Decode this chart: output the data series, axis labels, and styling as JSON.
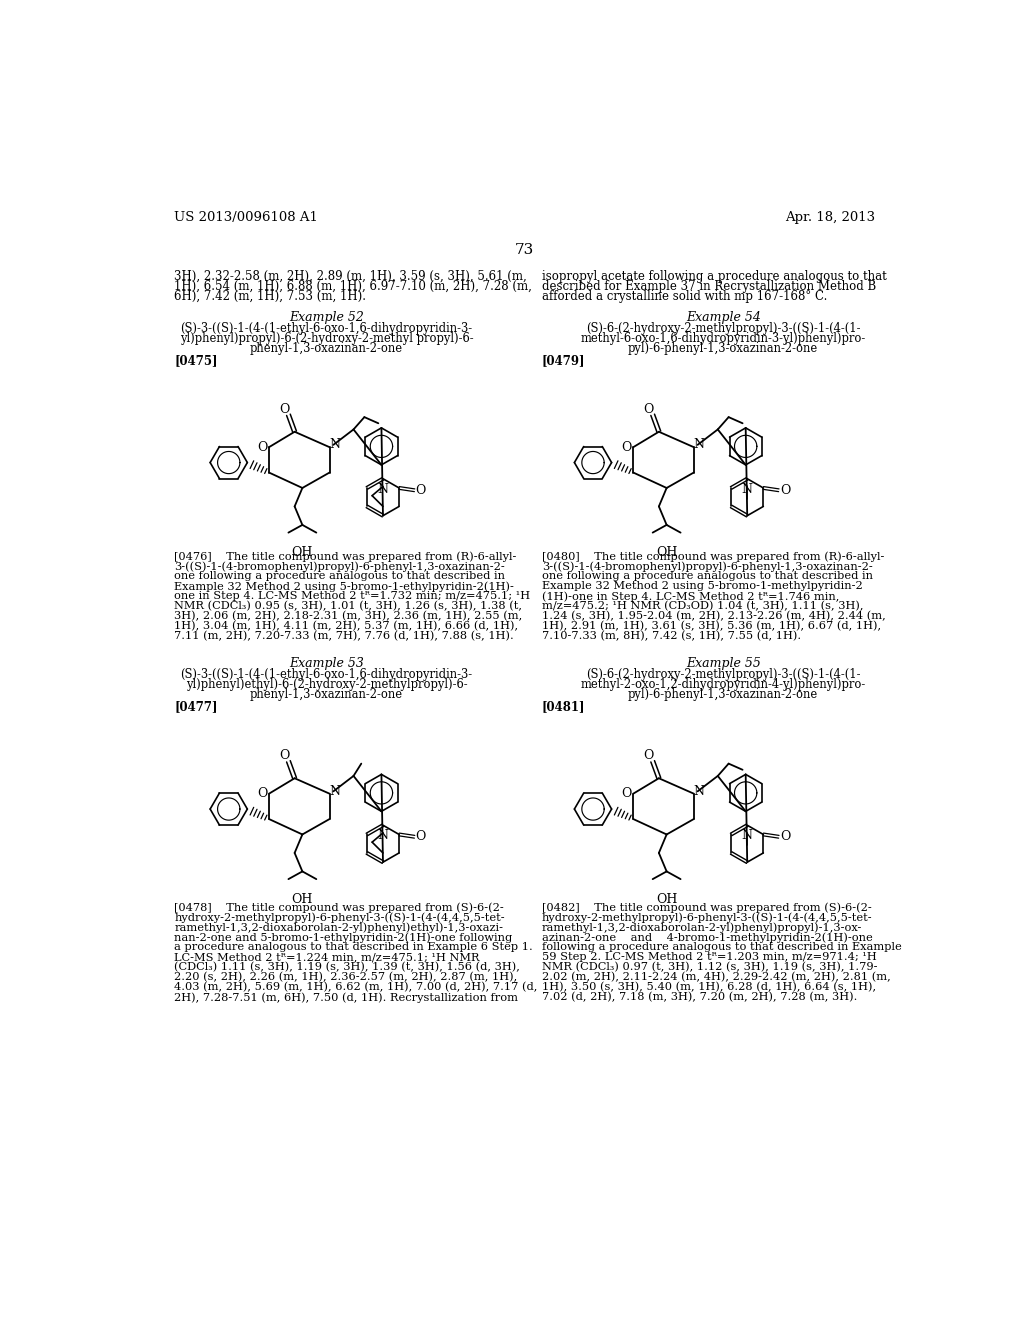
{
  "page_title_left": "US 2013/0096108 A1",
  "page_title_right": "Apr. 18, 2013",
  "page_number": "73",
  "background_color": "#ffffff",
  "text_color": "#000000",
  "intro_text_left": "3H), 2.32-2.58 (m, 2H), 2.89 (m, 1H), 3.59 (s, 3H), 5.61 (m,\n1H), 6.54 (m, 1H), 6.88 (m, 1H), 6.97-7.10 (m, 2H), 7.28 (m,\n6H), 7.42 (m, 1H), 7.53 (m, 1H).",
  "intro_text_right": "isopropyl acetate following a procedure analogous to that\ndescribed for Example 37 in Recrystallization Method B\nafforded a crystalline solid with mp 167-168° C.",
  "example52_title": "Example 52",
  "example52_subtitle": "(S)-3-((S)-1-(4-(1-ethyl-6-oxo-1,6-dihydropyridin-3-\nyl)phenyl)propyl)-6-(2-hydroxy-2-methyl propyl)-6-\nphenyl-1,3-oxazinan-2-one",
  "example52_tag": "[0475]",
  "example52_desc": "[0476]    The title compound was prepared from (R)-6-allyl-\n3-((S)-1-(4-bromophenyl)propyl)-6-phenyl-1,3-oxazinan-2-\none following a procedure analogous to that described in\nExample 32 Method 2 using 5-bromo-1-ethylpyridin-2(1H)-\none in Step 4. LC-MS Method 2 tᴿ=1.732 min; m/z=475.1; ¹H\nNMR (CDCl₃) 0.95 (s, 3H), 1.01 (t, 3H), 1.26 (s, 3H), 1.38 (t,\n3H), 2.06 (m, 2H), 2.18-2.31 (m, 3H), 2.36 (m, 1H), 2.55 (m,\n1H), 3.04 (m, 1H), 4.11 (m, 2H), 5.37 (m, 1H), 6.66 (d, 1H),\n7.11 (m, 2H), 7.20-7.33 (m, 7H), 7.76 (d, 1H), 7.88 (s, 1H).",
  "example53_title": "Example 53",
  "example53_subtitle": "(S)-3-((S)-1-(4-(1-ethyl-6-oxo-1,6-dihydropyridin-3-\nyl)phenyl)ethyl)-6-(2-hydroxy-2-methylpropyl)-6-\nphenyl-1,3-oxazinan-2-one",
  "example53_tag": "[0477]",
  "example53_desc": "[0478]    The title compound was prepared from (S)-6-(2-\nhydroxy-2-methylpropyl)-6-phenyl-3-((S)-1-(4-(4,4,5,5-tet-\nramethyl-1,3,2-dioxaborolan-2-yl)phenyl)ethyl)-1,3-oxazi-\nnan-2-one and 5-bromo-1-ethylpyridin-2(1H)-one following\na procedure analogous to that described in Example 6 Step 1.\nLC-MS Method 2 tᴿ=1.224 min, m/z=475.1; ¹H NMR\n(CDCl₃) 1.11 (s, 3H), 1.19 (s, 3H), 1.39 (t, 3H), 1.56 (d, 3H),\n2.20 (s, 2H), 2.26 (m, 1H), 2.36-2.57 (m, 2H), 2.87 (m, 1H),\n4.03 (m, 2H), 5.69 (m, 1H), 6.62 (m, 1H), 7.00 (d, 2H), 7.17 (d,\n2H), 7.28-7.51 (m, 6H), 7.50 (d, 1H). Recrystallization from",
  "example54_title": "Example 54",
  "example54_subtitle": "(S)-6-(2-hydroxy-2-methylpropyl)-3-((S)-1-(4-(1-\nmethyl-6-oxo-1,6-dihydropyridin-3-yl)phenyl)pro-\npyl)-6-phenyl-1,3-oxazinan-2-one",
  "example54_tag": "[0479]",
  "example54_desc": "[0480]    The title compound was prepared from (R)-6-allyl-\n3-((S)-1-(4-bromophenyl)propyl)-6-phenyl-1,3-oxazinan-2-\none following a procedure analogous to that described in\nExample 32 Method 2 using 5-bromo-1-methylpyridin-2\n(1H)-one in Step 4. LC-MS Method 2 tᴿ=1.746 min,\nm/z=475.2; ¹H NMR (CD₃OD) 1.04 (t, 3H), 1.11 (s, 3H),\n1.24 (s, 3H), 1.95-2.04 (m, 2H), 2.13-2.26 (m, 4H), 2.44 (m,\n1H), 2.91 (m, 1H), 3.61 (s, 3H), 5.36 (m, 1H), 6.67 (d, 1H),\n7.10-7.33 (m, 8H), 7.42 (s, 1H), 7.55 (d, 1H).",
  "example55_title": "Example 55",
  "example55_subtitle": "(S)-6-(2-hydroxy-2-methylpropyl)-3-((S)-1-(4-(1-\nmethyl-2-oxo-1,2-dihydropyridin-4-yl)phenyl)pro-\npyl)-6-phenyl-1,3-oxazinan-2-one",
  "example55_tag": "[0481]",
  "example55_desc": "[0482]    The title compound was prepared from (S)-6-(2-\nhydroxy-2-methylpropyl)-6-phenyl-3-((S)-1-(4-(4,4,5,5-tet-\nramethyl-1,3,2-dioxaborolan-2-yl)phenyl)propyl)-1,3-ox-\nazinan-2-one    and    4-bromo-1-methylpyridin-2(1H)-one\nfollowing a procedure analogous to that described in Example\n59 Step 2. LC-MS Method 2 tᴿ=1.203 min, m/z=971.4; ¹H\nNMR (CDCl₃) 0.97 (t, 3H), 1.12 (s, 3H), 1.19 (s, 3H), 1.79-\n2.02 (m, 2H), 2.11-2.24 (m, 4H), 2.29-2.42 (m, 2H), 2.81 (m,\n1H), 3.50 (s, 3H), 5.40 (m, 1H), 6.28 (d, 1H), 6.64 (s, 1H),\n7.02 (d, 2H), 7.18 (m, 3H), 7.20 (m, 2H), 7.28 (m, 3H)."
}
